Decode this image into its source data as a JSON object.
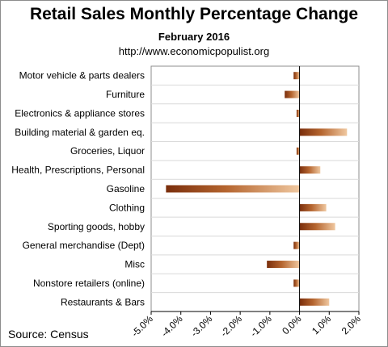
{
  "header": {
    "title": "Retail Sales Monthly  Percentage Change",
    "subtitle": "February 2016",
    "url": "http://www.economicpopulist.org"
  },
  "footer": {
    "source": "Source:  Census"
  },
  "colors": {
    "bar_dark": "#7a2e0c",
    "bar_mid": "#b5652f",
    "bar_light": "#f0c8a0",
    "grid": "#d9d9d9",
    "axis": "#000000"
  },
  "chart_data": {
    "type": "bar",
    "orientation": "horizontal",
    "title": "Retail Sales Monthly  Percentage Change",
    "subtitle": "February 2016",
    "categories": [
      "Motor vehicle & parts dealers",
      "Furniture",
      "Electronics & appliance stores",
      "Building material & garden eq.",
      "Groceries, Liquor",
      "Health, Prescriptions, Personal",
      "Gasoline",
      "Clothing",
      "Sporting goods, hobby",
      "General merchandise (Dept)",
      "Misc",
      "Nonstore retailers (online)",
      "Restaurants & Bars"
    ],
    "values": [
      -0.2,
      -0.5,
      -0.1,
      1.6,
      -0.1,
      0.7,
      -4.5,
      0.9,
      1.2,
      -0.2,
      -1.1,
      -0.2,
      1.0
    ],
    "xlim": [
      -5.0,
      2.0
    ],
    "xticks": [
      -5,
      -4,
      -3,
      -2,
      -1,
      0,
      1,
      2
    ],
    "tick_labels": [
      "-5.0%",
      "-4.0%",
      "-3.0%",
      "-2.0%",
      "-1.0%",
      "0.0%",
      "1.0%",
      "2.0%"
    ],
    "grid": true,
    "legend": "none"
  }
}
